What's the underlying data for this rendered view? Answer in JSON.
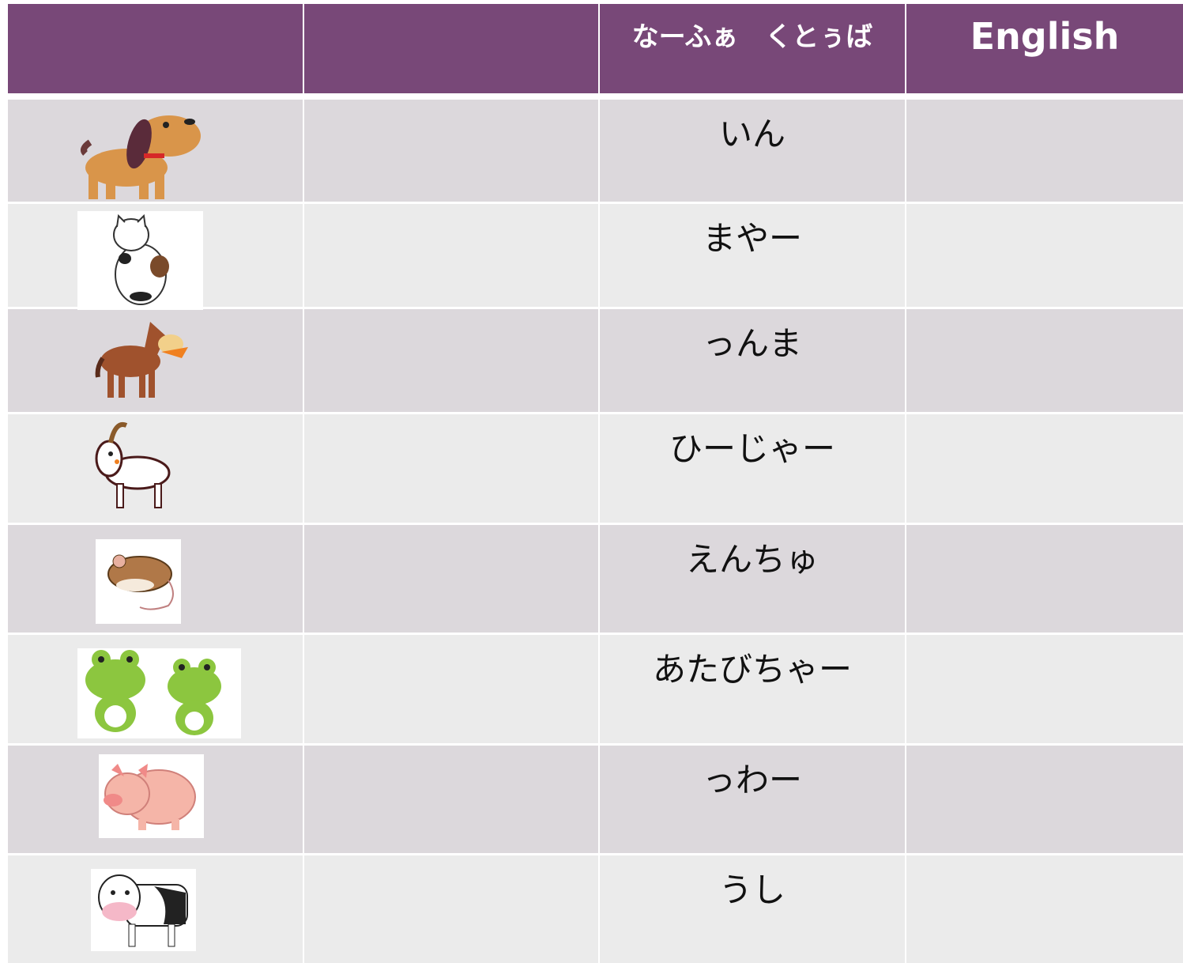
{
  "header": {
    "native_word": "なーふぁ　くとぅば",
    "english": "English"
  },
  "rows": [
    "いん",
    "まやー",
    "っんま",
    "ひーじゃー",
    "えんちゅ",
    "あたびちゃー",
    "っわー",
    "うし"
  ]
}
